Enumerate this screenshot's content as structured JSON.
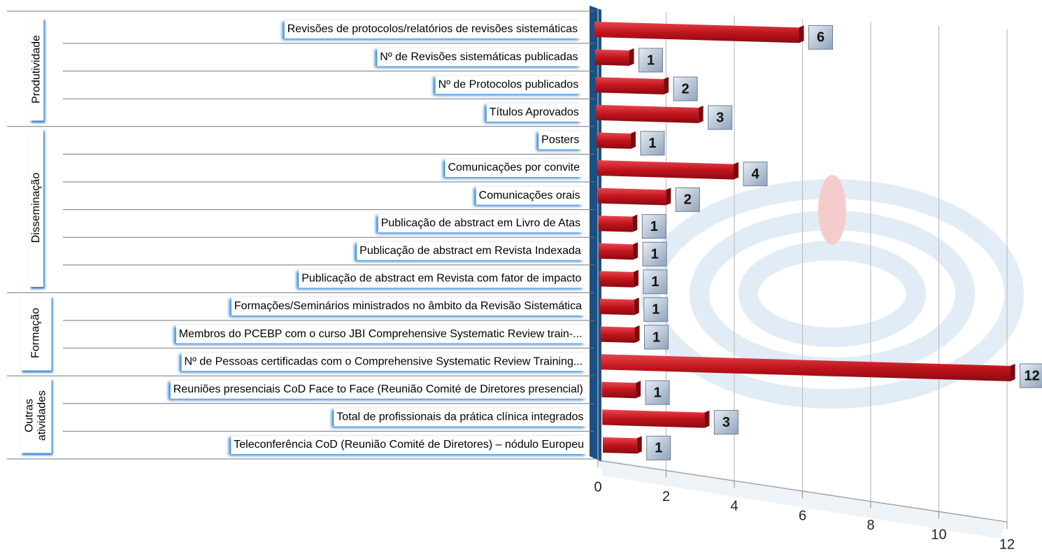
{
  "chart_data": {
    "type": "bar",
    "groups": [
      {
        "name": "Produtividade",
        "categories": [
          "Revisões de protocolos/relatórios de revisões sistemáticas",
          "Nº de Revisões sistemáticas publicadas",
          "Nº de Protocolos publicados",
          "Títulos Aprovados"
        ],
        "values": [
          6,
          1,
          2,
          3
        ]
      },
      {
        "name": "Disseminação",
        "categories": [
          "Posters",
          "Comunicações por convite",
          "Comunicações orais",
          "Publicação de abstract em Livro de Atas",
          "Publicação de abstract em Revista Indexada",
          "Publicação de abstract em Revista com fator de impacto"
        ],
        "values": [
          1,
          4,
          2,
          1,
          1,
          1
        ]
      },
      {
        "name": "Formação",
        "categories": [
          "Formações/Seminários ministrados no âmbito da Revisão Sistemática",
          "Membros do PCEBP com o curso JBI Comprehensive Systematic Review train-...",
          "Nº de Pessoas certificadas com o Comprehensive Systematic Review Training..."
        ],
        "values": [
          1,
          1,
          12
        ]
      },
      {
        "name": "Outras atividades",
        "categories": [
          "Reuniões presenciais CoD Face to Face (Reunião Comité de Diretores presencial)",
          "Total de profissionais da prática clínica integrados",
          "Teleconferência CoD (Reunião Comité de Diretores) – nódulo Europeu"
        ],
        "values": [
          1,
          3,
          1
        ]
      }
    ],
    "color": "#c0141c",
    "xlim": [
      0,
      12
    ],
    "xticks": [
      0,
      2,
      4,
      6,
      8,
      10,
      12
    ],
    "grid": true
  }
}
